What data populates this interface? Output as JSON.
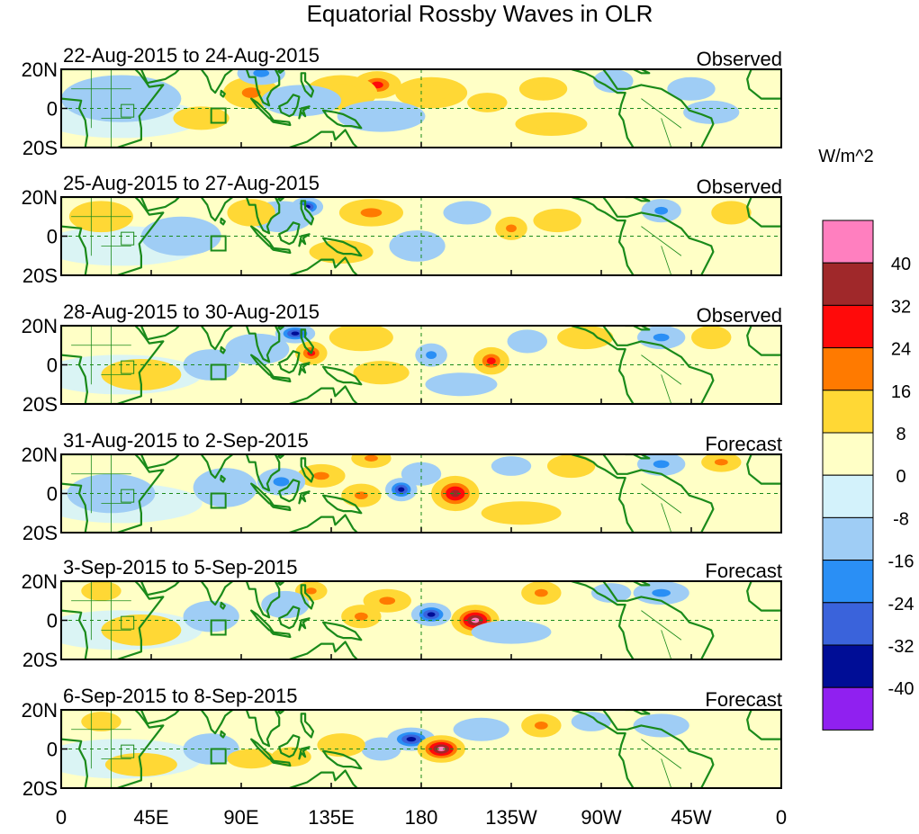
{
  "title": "Equatorial Rossby Waves in OLR",
  "colors": {
    "land": "#1a8a1a",
    "equator": "#1a8a1a",
    "ocean_zero": "#ffffcc",
    "neg_zero": "#d4f0fb"
  },
  "chart_data": {
    "type": "heatmap",
    "variable": "OLR anomaly (Equatorial Rossby Waves)",
    "units_label": "W/m^2",
    "x_ticks": [
      "0",
      "45E",
      "90E",
      "135E",
      "180",
      "135W",
      "90W",
      "45W",
      "0"
    ],
    "x_range_degE": [
      0,
      360
    ],
    "y_ticks": [
      "20N",
      "0",
      "20S"
    ],
    "y_range_deg": [
      -20,
      20
    ],
    "colorbar": {
      "labels": [
        "40",
        "32",
        "24",
        "16",
        "8",
        "0",
        "-8",
        "-16",
        "-24",
        "-32",
        "-40"
      ],
      "boundaries": [
        40,
        32,
        24,
        16,
        8,
        0,
        -8,
        -16,
        -24,
        -32,
        -40
      ],
      "colors": [
        "#ff7fbf",
        "#a0282a",
        "#ff0a0a",
        "#ff7a00",
        "#ffd835",
        "#ffffc6",
        "#d3f2fb",
        "#9fcdf5",
        "#2a8ff5",
        "#3a63db",
        "#000d96",
        "#9020f0"
      ]
    },
    "panels": [
      {
        "date": "22-Aug-2015 to 24-Aug-2015",
        "status": "Observed",
        "blobs": [
          {
            "lon": 95,
            "lat": 8,
            "value": 22,
            "rx": 14,
            "ry": 8
          },
          {
            "lon": 158,
            "lat": 12,
            "value": 30,
            "rx": 12,
            "ry": 7
          },
          {
            "lon": 140,
            "lat": 8,
            "value": 14,
            "rx": 18,
            "ry": 9
          },
          {
            "lon": 185,
            "lat": 8,
            "value": 12,
            "rx": 18,
            "ry": 8
          },
          {
            "lon": 100,
            "lat": 18,
            "value": -18,
            "rx": 12,
            "ry": 6
          },
          {
            "lon": 120,
            "lat": 4,
            "value": -12,
            "rx": 20,
            "ry": 8
          },
          {
            "lon": 160,
            "lat": -4,
            "value": -10,
            "rx": 22,
            "ry": 8
          },
          {
            "lon": 213,
            "lat": 3,
            "value": 14,
            "rx": 10,
            "ry": 5
          },
          {
            "lon": 241,
            "lat": 10,
            "value": 12,
            "rx": 12,
            "ry": 6
          },
          {
            "lon": 276,
            "lat": 14,
            "value": -10,
            "rx": 10,
            "ry": 6
          },
          {
            "lon": 315,
            "lat": 10,
            "value": -10,
            "rx": 12,
            "ry": 6
          },
          {
            "lon": 325,
            "lat": -2,
            "value": -8,
            "rx": 14,
            "ry": 6
          },
          {
            "lon": 30,
            "lat": 5,
            "value": -8,
            "rx": 30,
            "ry": 12
          },
          {
            "lon": 245,
            "lat": -8,
            "value": 10,
            "rx": 18,
            "ry": 6
          },
          {
            "lon": 70,
            "lat": -5,
            "value": 8,
            "rx": 14,
            "ry": 6
          }
        ]
      },
      {
        "date": "25-Aug-2015 to 27-Aug-2015",
        "status": "Observed",
        "blobs": [
          {
            "lon": 123,
            "lat": 15,
            "value": -34,
            "rx": 8,
            "ry": 5
          },
          {
            "lon": 110,
            "lat": 10,
            "value": -14,
            "rx": 16,
            "ry": 8
          },
          {
            "lon": 155,
            "lat": 12,
            "value": 18,
            "rx": 16,
            "ry": 7
          },
          {
            "lon": 95,
            "lat": 12,
            "value": 12,
            "rx": 12,
            "ry": 7
          },
          {
            "lon": 178,
            "lat": -5,
            "value": -12,
            "rx": 14,
            "ry": 8
          },
          {
            "lon": 203,
            "lat": 12,
            "value": -12,
            "rx": 12,
            "ry": 6
          },
          {
            "lon": 225,
            "lat": 4,
            "value": 22,
            "rx": 8,
            "ry": 6
          },
          {
            "lon": 248,
            "lat": 8,
            "value": 12,
            "rx": 12,
            "ry": 6
          },
          {
            "lon": 300,
            "lat": 13,
            "value": -22,
            "rx": 10,
            "ry": 6
          },
          {
            "lon": 335,
            "lat": 12,
            "value": 12,
            "rx": 10,
            "ry": 6
          },
          {
            "lon": 60,
            "lat": 0,
            "value": -8,
            "rx": 20,
            "ry": 10
          },
          {
            "lon": 20,
            "lat": 10,
            "value": 8,
            "rx": 16,
            "ry": 8
          },
          {
            "lon": 140,
            "lat": -8,
            "value": 8,
            "rx": 16,
            "ry": 6
          }
        ]
      },
      {
        "date": "28-Aug-2015 to 30-Aug-2015",
        "status": "Observed",
        "blobs": [
          {
            "lon": 117,
            "lat": 16,
            "value": -34,
            "rx": 10,
            "ry": 5
          },
          {
            "lon": 98,
            "lat": 8,
            "value": -16,
            "rx": 16,
            "ry": 8
          },
          {
            "lon": 75,
            "lat": 0,
            "value": -10,
            "rx": 14,
            "ry": 8
          },
          {
            "lon": 125,
            "lat": 6,
            "value": 26,
            "rx": 8,
            "ry": 6
          },
          {
            "lon": 150,
            "lat": 14,
            "value": 14,
            "rx": 16,
            "ry": 7
          },
          {
            "lon": 185,
            "lat": 5,
            "value": -18,
            "rx": 8,
            "ry": 6
          },
          {
            "lon": 215,
            "lat": 2,
            "value": 26,
            "rx": 9,
            "ry": 7
          },
          {
            "lon": 200,
            "lat": -10,
            "value": -8,
            "rx": 18,
            "ry": 6
          },
          {
            "lon": 233,
            "lat": 12,
            "value": -12,
            "rx": 10,
            "ry": 6
          },
          {
            "lon": 262,
            "lat": 14,
            "value": 10,
            "rx": 14,
            "ry": 6
          },
          {
            "lon": 300,
            "lat": 14,
            "value": -22,
            "rx": 12,
            "ry": 6
          },
          {
            "lon": 325,
            "lat": 14,
            "value": 14,
            "rx": 10,
            "ry": 6
          },
          {
            "lon": 40,
            "lat": -5,
            "value": 8,
            "rx": 20,
            "ry": 8
          },
          {
            "lon": 160,
            "lat": -4,
            "value": 8,
            "rx": 14,
            "ry": 6
          }
        ]
      },
      {
        "date": "31-Aug-2015 to 2-Sep-2015",
        "status": "Forecast",
        "blobs": [
          {
            "lon": 170,
            "lat": 2,
            "value": -34,
            "rx": 8,
            "ry": 6
          },
          {
            "lon": 197,
            "lat": 0,
            "value": 34,
            "rx": 12,
            "ry": 9
          },
          {
            "lon": 130,
            "lat": 9,
            "value": 20,
            "rx": 12,
            "ry": 6
          },
          {
            "lon": 150,
            "lat": -1,
            "value": 22,
            "rx": 10,
            "ry": 6
          },
          {
            "lon": 110,
            "lat": 6,
            "value": -22,
            "rx": 12,
            "ry": 7
          },
          {
            "lon": 82,
            "lat": 3,
            "value": -16,
            "rx": 16,
            "ry": 10
          },
          {
            "lon": 180,
            "lat": 10,
            "value": -16,
            "rx": 10,
            "ry": 6
          },
          {
            "lon": 155,
            "lat": 18,
            "value": 20,
            "rx": 10,
            "ry": 5
          },
          {
            "lon": 225,
            "lat": 14,
            "value": -12,
            "rx": 10,
            "ry": 5
          },
          {
            "lon": 255,
            "lat": 14,
            "value": 14,
            "rx": 12,
            "ry": 6
          },
          {
            "lon": 300,
            "lat": 15,
            "value": -24,
            "rx": 12,
            "ry": 6
          },
          {
            "lon": 330,
            "lat": 16,
            "value": 18,
            "rx": 10,
            "ry": 5
          },
          {
            "lon": 25,
            "lat": 0,
            "value": -8,
            "rx": 22,
            "ry": 10
          },
          {
            "lon": 230,
            "lat": -10,
            "value": 8,
            "rx": 20,
            "ry": 6
          }
        ]
      },
      {
        "date": "3-Sep-2015 to 5-Sep-2015",
        "status": "Forecast",
        "blobs": [
          {
            "lon": 185,
            "lat": 3,
            "value": -34,
            "rx": 10,
            "ry": 6
          },
          {
            "lon": 207,
            "lat": 0,
            "value": 42,
            "rx": 12,
            "ry": 8
          },
          {
            "lon": 150,
            "lat": 2,
            "value": 24,
            "rx": 10,
            "ry": 6
          },
          {
            "lon": 163,
            "lat": 10,
            "value": 22,
            "rx": 12,
            "ry": 6
          },
          {
            "lon": 125,
            "lat": 15,
            "value": 24,
            "rx": 8,
            "ry": 5
          },
          {
            "lon": 112,
            "lat": 8,
            "value": -16,
            "rx": 12,
            "ry": 7
          },
          {
            "lon": 75,
            "lat": 2,
            "value": -16,
            "rx": 14,
            "ry": 8
          },
          {
            "lon": 240,
            "lat": 14,
            "value": 22,
            "rx": 10,
            "ry": 6
          },
          {
            "lon": 275,
            "lat": 14,
            "value": -14,
            "rx": 10,
            "ry": 5
          },
          {
            "lon": 300,
            "lat": 14,
            "value": -20,
            "rx": 14,
            "ry": 6
          },
          {
            "lon": 20,
            "lat": 15,
            "value": 12,
            "rx": 10,
            "ry": 5
          },
          {
            "lon": 40,
            "lat": -5,
            "value": 8,
            "rx": 20,
            "ry": 8
          },
          {
            "lon": 225,
            "lat": -6,
            "value": -8,
            "rx": 20,
            "ry": 6
          }
        ]
      },
      {
        "date": "6-Sep-2015 to 8-Sep-2015",
        "status": "Forecast",
        "blobs": [
          {
            "lon": 175,
            "lat": 5,
            "value": -34,
            "rx": 12,
            "ry": 6
          },
          {
            "lon": 190,
            "lat": 0,
            "value": 44,
            "rx": 12,
            "ry": 7
          },
          {
            "lon": 160,
            "lat": 0,
            "value": -16,
            "rx": 10,
            "ry": 6
          },
          {
            "lon": 140,
            "lat": 2,
            "value": 12,
            "rx": 12,
            "ry": 6
          },
          {
            "lon": 75,
            "lat": 0,
            "value": -14,
            "rx": 14,
            "ry": 8
          },
          {
            "lon": 95,
            "lat": -5,
            "value": 16,
            "rx": 12,
            "ry": 5
          },
          {
            "lon": 115,
            "lat": -4,
            "value": 14,
            "rx": 10,
            "ry": 5
          },
          {
            "lon": 240,
            "lat": 12,
            "value": 22,
            "rx": 10,
            "ry": 6
          },
          {
            "lon": 265,
            "lat": 14,
            "value": -16,
            "rx": 10,
            "ry": 5
          },
          {
            "lon": 300,
            "lat": 12,
            "value": -16,
            "rx": 14,
            "ry": 6
          },
          {
            "lon": 20,
            "lat": 14,
            "value": 12,
            "rx": 10,
            "ry": 5
          },
          {
            "lon": 210,
            "lat": 10,
            "value": -12,
            "rx": 14,
            "ry": 6
          },
          {
            "lon": 40,
            "lat": -8,
            "value": 8,
            "rx": 18,
            "ry": 6
          }
        ]
      }
    ]
  }
}
